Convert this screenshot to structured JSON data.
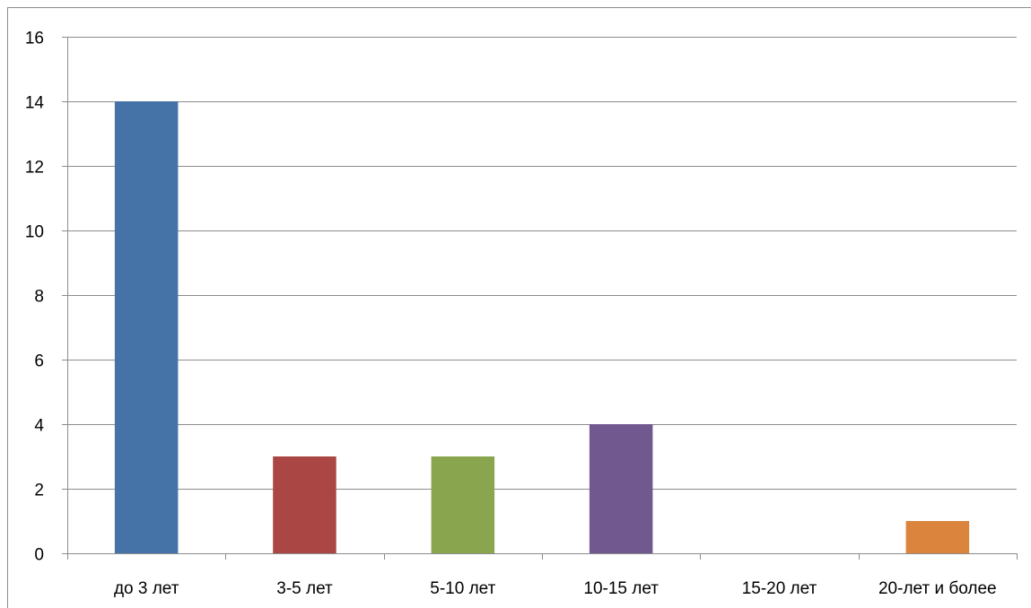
{
  "chart_data": {
    "type": "bar",
    "title": "",
    "xlabel": "",
    "ylabel": "",
    "categories": [
      "до 3 лет",
      "3-5 лет",
      "5-10 лет",
      "10-15 лет",
      "15-20 лет",
      "20-лет и более"
    ],
    "values": [
      14,
      3,
      3,
      4,
      0,
      1
    ],
    "bar_colors": [
      "#4573a7",
      "#aa4644",
      "#89a54e",
      "#71588f",
      "#4298af",
      "#db843d"
    ],
    "ylim": [
      0,
      16
    ],
    "y_ticks": [
      "0",
      "2",
      "4",
      "6",
      "8",
      "10",
      "12",
      "14",
      "16"
    ],
    "grid": true,
    "legend": "none",
    "colors": {
      "gridline": "#8c8c8c",
      "axis": "#8c8c8c",
      "text": "#000000"
    }
  }
}
